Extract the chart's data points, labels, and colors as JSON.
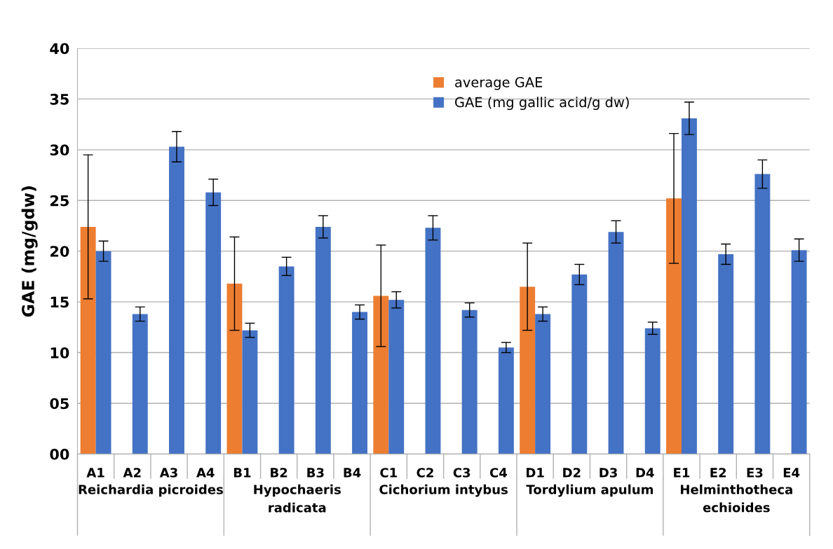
{
  "chart_data": {
    "type": "bar",
    "ylabel": "GAE (mg/gdw)",
    "categories": [
      "A1",
      "A2",
      "A3",
      "A4",
      "B1",
      "B2",
      "B3",
      "B4",
      "C1",
      "C2",
      "C3",
      "C4",
      "D1",
      "D2",
      "D3",
      "D4",
      "E1",
      "E2",
      "E3",
      "E4"
    ],
    "series": [
      {
        "name": "average GAE",
        "color": "#ed7d31",
        "values": [
          22.4,
          null,
          null,
          null,
          16.8,
          null,
          null,
          null,
          15.6,
          null,
          null,
          null,
          16.5,
          null,
          null,
          null,
          25.2,
          null,
          null,
          null
        ],
        "errors": [
          7.1,
          null,
          null,
          null,
          4.6,
          null,
          null,
          null,
          5.0,
          null,
          null,
          null,
          4.3,
          null,
          null,
          null,
          6.4,
          null,
          null,
          null
        ]
      },
      {
        "name": "GAE (mg gallic acid/g dw)",
        "color": "#4472c4",
        "values": [
          20.0,
          13.8,
          30.3,
          25.8,
          12.2,
          18.5,
          22.4,
          14.0,
          15.2,
          22.3,
          14.2,
          10.5,
          13.8,
          17.7,
          21.9,
          12.4,
          33.1,
          19.7,
          27.6,
          20.1
        ],
        "errors": [
          1.0,
          0.7,
          1.5,
          1.3,
          0.7,
          0.9,
          1.1,
          0.7,
          0.8,
          1.2,
          0.7,
          0.5,
          0.7,
          1.0,
          1.1,
          0.6,
          1.6,
          1.0,
          1.4,
          1.1
        ]
      }
    ],
    "ylim": [
      0,
      40
    ],
    "yticks": [
      {
        "value": 0,
        "label": "00"
      },
      {
        "value": 5,
        "label": "05"
      },
      10,
      15,
      20,
      25,
      30,
      35,
      40
    ],
    "annotations": [
      "Reichardia picroides",
      "Hypochaeris\nradicata",
      "Cichorium intybus",
      "Tordylium apulum",
      "Helminthotheca\nechioides"
    ],
    "grid": "y",
    "legend": "top"
  }
}
